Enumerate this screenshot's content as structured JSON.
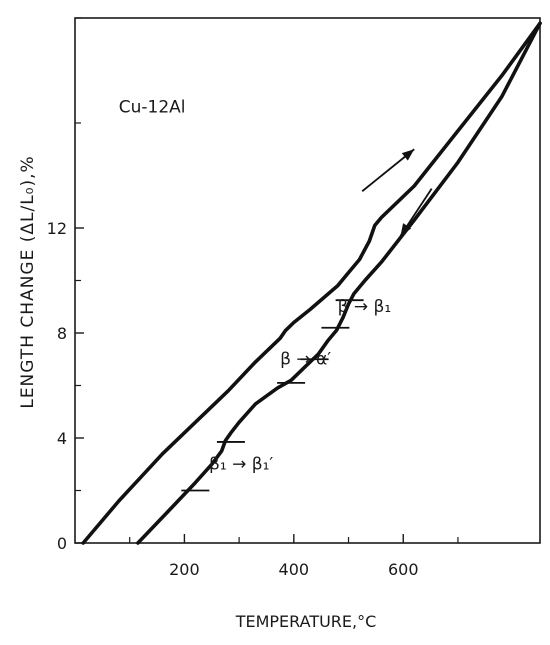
{
  "chart_data": {
    "type": "line",
    "xlabel": "TEMPERATURE,°C",
    "ylabel": "LENGTH CHANGE (ΔL/L₀),%",
    "xlim": [
      0,
      850
    ],
    "ylim": [
      0,
      20
    ],
    "xticks": [
      200,
      400,
      600
    ],
    "xtick_labels": [
      "200",
      "400",
      "600"
    ],
    "xticks_minor": [
      100,
      300,
      500,
      700
    ],
    "yticks": [
      0,
      4,
      8,
      12
    ],
    "ytick_labels": [
      "0",
      "4",
      "8",
      "12"
    ],
    "yticks_minor": [
      2,
      6,
      10,
      16,
      20
    ],
    "grid": false,
    "annotations": [
      {
        "text": "Cu-12Al",
        "x": 80,
        "y": 16.4
      },
      {
        "text": "β → β₁",
        "x": 480,
        "y": 8.8
      },
      {
        "text": "β → α′",
        "x": 375,
        "y": 6.8
      },
      {
        "text": "β₁ → β₁′",
        "x": 245,
        "y": 2.8
      }
    ],
    "arrows": [
      {
        "direction": "heating",
        "from": [
          525,
          13.4
        ],
        "to": [
          620,
          15.0
        ]
      },
      {
        "direction": "cooling",
        "from": [
          652,
          13.5
        ],
        "to": [
          595,
          11.7
        ]
      }
    ],
    "series": [
      {
        "x": [
          15,
          80,
          160,
          240,
          280,
          330,
          375,
          385,
          400,
          430,
          480,
          500,
          520,
          538,
          548,
          560,
          620,
          700,
          780,
          850
        ],
        "y": [
          0,
          1.6,
          3.4,
          5.0,
          5.8,
          6.9,
          7.8,
          8.1,
          8.4,
          8.9,
          9.8,
          10.3,
          10.8,
          11.5,
          12.1,
          12.4,
          13.6,
          15.7,
          17.8,
          19.8
        ]
      },
      {
        "x": [
          115,
          170,
          220,
          250,
          268,
          275,
          285,
          300,
          330,
          370,
          395,
          420,
          445,
          462,
          478,
          490,
          500,
          510,
          530,
          560,
          620,
          700,
          780,
          850
        ],
        "y": [
          0,
          1.2,
          2.3,
          3.0,
          3.5,
          3.9,
          4.2,
          4.6,
          5.3,
          5.9,
          6.2,
          6.7,
          7.2,
          7.7,
          8.1,
          8.6,
          9.1,
          9.5,
          10.0,
          10.7,
          12.3,
          14.5,
          17.0,
          19.8
        ]
      }
    ],
    "transition_marks": [
      {
        "x": 220,
        "y": 2.0
      },
      {
        "x": 285,
        "y": 3.85
      },
      {
        "x": 395,
        "y": 6.1
      },
      {
        "x": 438,
        "y": 7.0
      },
      {
        "x": 476,
        "y": 8.2
      },
      {
        "x": 502,
        "y": 9.25
      }
    ]
  }
}
